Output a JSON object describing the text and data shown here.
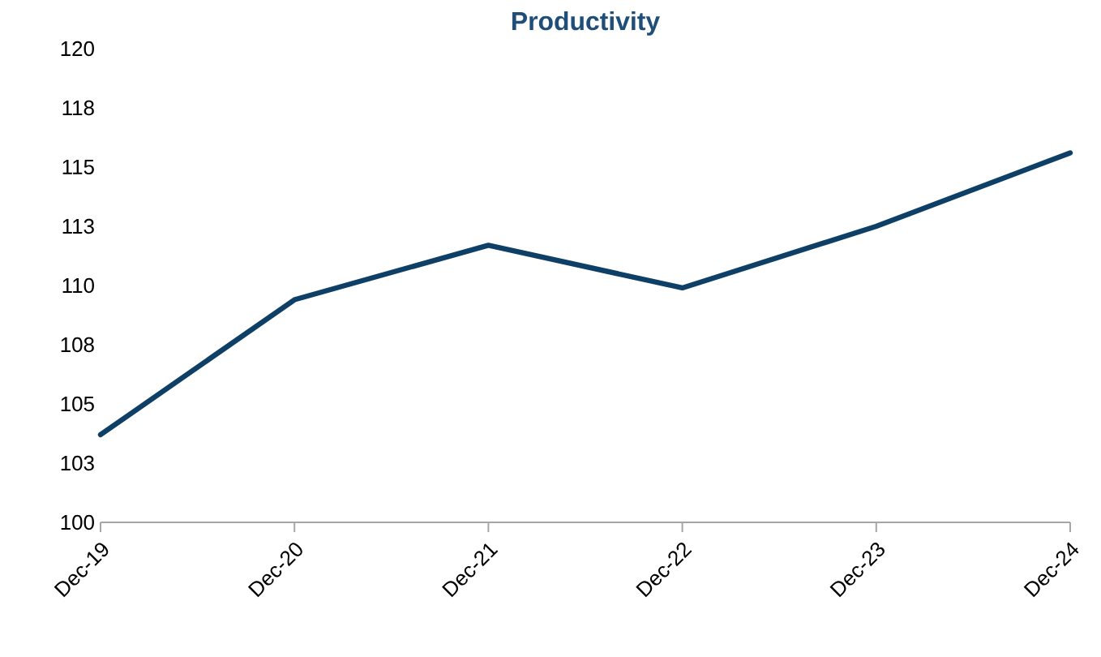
{
  "chart_data": {
    "type": "line",
    "title": "Productivity",
    "categories": [
      "Dec-19",
      "Dec-20",
      "Dec-21",
      "Dec-22",
      "Dec-23",
      "Dec-24"
    ],
    "series": [
      {
        "color": "#0e3f66",
        "values": [
          103.7,
          109.4,
          111.7,
          109.9,
          112.5,
          115.6
        ]
      }
    ],
    "ylim": [
      100,
      120
    ],
    "yticks": [
      100,
      {
        "value": 102.5,
        "label": "103"
      },
      105,
      {
        "value": 107.5,
        "label": "108"
      },
      110,
      {
        "value": 112.5,
        "label": "113"
      },
      115,
      {
        "value": 117.5,
        "label": "118"
      },
      120
    ],
    "grid": false,
    "marker": "none",
    "line_style": "solid"
  }
}
